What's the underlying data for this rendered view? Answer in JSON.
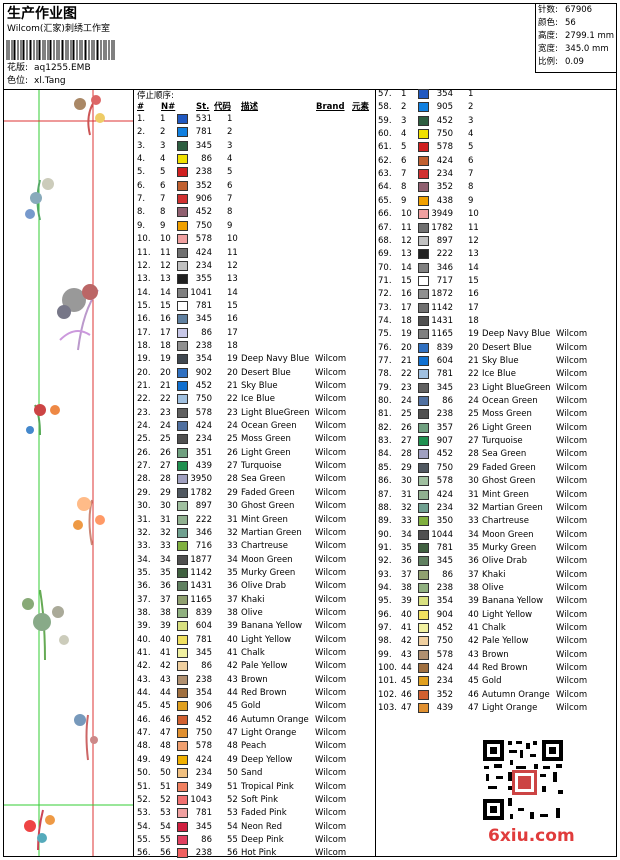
{
  "header": {
    "title": "生产作业图",
    "studio": "Wilcom(汇家)刺绣工作室",
    "design_label": "花版:",
    "design": "aq1255.EMB",
    "colorway_label": "色位:",
    "colorway": "xl.Tang"
  },
  "info": [
    {
      "label": "针数:",
      "value": "67906"
    },
    {
      "label": "颜色:",
      "value": "56"
    },
    {
      "label": "高度:",
      "value": "2799.1 mm"
    },
    {
      "label": "宽度:",
      "value": "345.0 mm"
    },
    {
      "label": "比例:",
      "value": "0.09"
    }
  ],
  "stop_table": {
    "title": "停止顺序:",
    "columns": [
      "#",
      "N#",
      "St.",
      "代码",
      "描述",
      "Brand",
      "元素"
    ],
    "left": [
      {
        "seq": "1.",
        "n": "1",
        "color": "#2058c0",
        "st": "531",
        "code": "1"
      },
      {
        "seq": "2.",
        "n": "2",
        "color": "#1080e0",
        "st": "781",
        "code": "2"
      },
      {
        "seq": "3.",
        "n": "3",
        "color": "#2e5e40",
        "st": "345",
        "code": "3"
      },
      {
        "seq": "4.",
        "n": "4",
        "color": "#f0e000",
        "st": "86",
        "code": "4"
      },
      {
        "seq": "5.",
        "n": "5",
        "color": "#d02020",
        "st": "238",
        "code": "5"
      },
      {
        "seq": "6.",
        "n": "6",
        "color": "#c06030",
        "st": "352",
        "code": "6"
      },
      {
        "seq": "7.",
        "n": "7",
        "color": "#d03030",
        "st": "906",
        "code": "7"
      },
      {
        "seq": "8.",
        "n": "8",
        "color": "#906070",
        "st": "452",
        "code": "8"
      },
      {
        "seq": "9.",
        "n": "9",
        "color": "#f0a000",
        "st": "750",
        "code": "9"
      },
      {
        "seq": "10.",
        "n": "10",
        "color": "#f0a0a0",
        "st": "578",
        "code": "10"
      },
      {
        "seq": "11.",
        "n": "11",
        "color": "#707070",
        "st": "424",
        "code": "11"
      },
      {
        "seq": "12.",
        "n": "12",
        "color": "#c0c0c0",
        "st": "234",
        "code": "12"
      },
      {
        "seq": "13.",
        "n": "13",
        "color": "#202020",
        "st": "355",
        "code": "13"
      },
      {
        "seq": "14.",
        "n": "14",
        "color": "#808080",
        "st": "1041",
        "code": "14"
      },
      {
        "seq": "15.",
        "n": "15",
        "color": "#ffffff",
        "st": "781",
        "code": "15"
      },
      {
        "seq": "16.",
        "n": "16",
        "color": "#6080a0",
        "st": "345",
        "code": "16"
      },
      {
        "seq": "17.",
        "n": "17",
        "color": "#c8c8e8",
        "st": "86",
        "code": "17"
      },
      {
        "seq": "18.",
        "n": "18",
        "color": "#909090",
        "st": "238",
        "code": "18"
      },
      {
        "seq": "19.",
        "n": "19",
        "color": "#404850",
        "st": "354",
        "code": "19",
        "desc": "Deep Navy Blue",
        "brand": "Wilcom"
      },
      {
        "seq": "20.",
        "n": "20",
        "color": "#3070c0",
        "st": "902",
        "code": "20",
        "desc": "Desert Blue",
        "brand": "Wilcom"
      },
      {
        "seq": "21.",
        "n": "21",
        "color": "#1070d0",
        "st": "452",
        "code": "21",
        "desc": "Sky Blue",
        "brand": "Wilcom"
      },
      {
        "seq": "22.",
        "n": "22",
        "color": "#a0c0e0",
        "st": "750",
        "code": "22",
        "desc": "Ice Blue",
        "brand": "Wilcom"
      },
      {
        "seq": "23.",
        "n": "23",
        "color": "#606060",
        "st": "578",
        "code": "23",
        "desc": "Light BlueGreen",
        "brand": "Wilcom"
      },
      {
        "seq": "24.",
        "n": "24",
        "color": "#5070a0",
        "st": "424",
        "code": "24",
        "desc": "Ocean Green",
        "brand": "Wilcom"
      },
      {
        "seq": "25.",
        "n": "25",
        "color": "#505050",
        "st": "234",
        "code": "25",
        "desc": "Moss Green",
        "brand": "Wilcom"
      },
      {
        "seq": "26.",
        "n": "26",
        "color": "#70a080",
        "st": "351",
        "code": "26",
        "desc": "Light Green",
        "brand": "Wilcom"
      },
      {
        "seq": "27.",
        "n": "27",
        "color": "#209050",
        "st": "439",
        "code": "27",
        "desc": "Turquoise",
        "brand": "Wilcom"
      },
      {
        "seq": "28.",
        "n": "28",
        "color": "#a0a0c0",
        "st": "3950",
        "code": "28",
        "desc": "Sea Green",
        "brand": "Wilcom"
      },
      {
        "seq": "29.",
        "n": "29",
        "color": "#505860",
        "st": "1782",
        "code": "29",
        "desc": "Faded Green",
        "brand": "Wilcom"
      },
      {
        "seq": "30.",
        "n": "30",
        "color": "#a0c0a0",
        "st": "897",
        "code": "30",
        "desc": "Ghost Green",
        "brand": "Wilcom"
      },
      {
        "seq": "31.",
        "n": "31",
        "color": "#90b090",
        "st": "222",
        "code": "31",
        "desc": "Mint Green",
        "brand": "Wilcom"
      },
      {
        "seq": "32.",
        "n": "32",
        "color": "#70a090",
        "st": "346",
        "code": "32",
        "desc": "Martian Green",
        "brand": "Wilcom"
      },
      {
        "seq": "33.",
        "n": "33",
        "color": "#80b040",
        "st": "716",
        "code": "33",
        "desc": "Chartreuse",
        "brand": "Wilcom"
      },
      {
        "seq": "34.",
        "n": "34",
        "color": "#505050",
        "st": "1877",
        "code": "34",
        "desc": "Moon Green",
        "brand": "Wilcom"
      },
      {
        "seq": "35.",
        "n": "35",
        "color": "#406040",
        "st": "1142",
        "code": "35",
        "desc": "Murky Green",
        "brand": "Wilcom"
      },
      {
        "seq": "36.",
        "n": "36",
        "color": "#608060",
        "st": "1431",
        "code": "36",
        "desc": "Olive Drab",
        "brand": "Wilcom"
      },
      {
        "seq": "37.",
        "n": "37",
        "color": "#90a070",
        "st": "1165",
        "code": "37",
        "desc": "Khaki",
        "brand": "Wilcom"
      },
      {
        "seq": "38.",
        "n": "38",
        "color": "#90b080",
        "st": "839",
        "code": "38",
        "desc": "Olive",
        "brand": "Wilcom"
      },
      {
        "seq": "39.",
        "n": "39",
        "color": "#d8e080",
        "st": "604",
        "code": "39",
        "desc": "Banana Yellow",
        "brand": "Wilcom"
      },
      {
        "seq": "40.",
        "n": "40",
        "color": "#f0e060",
        "st": "781",
        "code": "40",
        "desc": "Light Yellow",
        "brand": "Wilcom"
      },
      {
        "seq": "41.",
        "n": "41",
        "color": "#f0f0a0",
        "st": "345",
        "code": "41",
        "desc": "Chalk",
        "brand": "Wilcom"
      },
      {
        "seq": "42.",
        "n": "42",
        "color": "#f0d0a0",
        "st": "86",
        "code": "42",
        "desc": "Pale Yellow",
        "brand": "Wilcom"
      },
      {
        "seq": "43.",
        "n": "43",
        "color": "#b09070",
        "st": "238",
        "code": "43",
        "desc": "Brown",
        "brand": "Wilcom"
      },
      {
        "seq": "44.",
        "n": "44",
        "color": "#a07040",
        "st": "354",
        "code": "44",
        "desc": "Red Brown",
        "brand": "Wilcom"
      },
      {
        "seq": "45.",
        "n": "45",
        "color": "#e0a020",
        "st": "906",
        "code": "45",
        "desc": "Gold",
        "brand": "Wilcom"
      },
      {
        "seq": "46.",
        "n": "46",
        "color": "#d06030",
        "st": "452",
        "code": "46",
        "desc": "Autumn Orange",
        "brand": "Wilcom"
      },
      {
        "seq": "47.",
        "n": "47",
        "color": "#e09030",
        "st": "750",
        "code": "47",
        "desc": "Light Orange",
        "brand": "Wilcom"
      },
      {
        "seq": "48.",
        "n": "48",
        "color": "#f0a070",
        "st": "578",
        "code": "48",
        "desc": "Peach",
        "brand": "Wilcom"
      },
      {
        "seq": "49.",
        "n": "49",
        "color": "#f0b000",
        "st": "424",
        "code": "49",
        "desc": "Deep Yellow",
        "brand": "Wilcom"
      },
      {
        "seq": "50.",
        "n": "50",
        "color": "#f0c080",
        "st": "234",
        "code": "50",
        "desc": "Sand",
        "brand": "Wilcom"
      },
      {
        "seq": "51.",
        "n": "51",
        "color": "#f08060",
        "st": "349",
        "code": "51",
        "desc": "Tropical Pink",
        "brand": "Wilcom"
      },
      {
        "seq": "52.",
        "n": "52",
        "color": "#f07070",
        "st": "1043",
        "code": "52",
        "desc": "Soft Pink",
        "brand": "Wilcom"
      },
      {
        "seq": "53.",
        "n": "53",
        "color": "#f0a0a0",
        "st": "781",
        "code": "53",
        "desc": "Faded Pink",
        "brand": "Wilcom"
      },
      {
        "seq": "54.",
        "n": "54",
        "color": "#d02040",
        "st": "345",
        "code": "54",
        "desc": "Neon Red",
        "brand": "Wilcom"
      },
      {
        "seq": "55.",
        "n": "55",
        "color": "#e04060",
        "st": "86",
        "code": "55",
        "desc": "Deep Pink",
        "brand": "Wilcom"
      },
      {
        "seq": "56.",
        "n": "56",
        "color": "#f06060",
        "st": "238",
        "code": "56",
        "desc": "Hot Pink",
        "brand": "Wilcom"
      }
    ],
    "right": [
      {
        "seq": "57.",
        "n": "1",
        "color": "#2058c0",
        "st": "354",
        "code": "1"
      },
      {
        "seq": "58.",
        "n": "2",
        "color": "#1080e0",
        "st": "905",
        "code": "2"
      },
      {
        "seq": "59.",
        "n": "3",
        "color": "#2e5e40",
        "st": "452",
        "code": "3"
      },
      {
        "seq": "60.",
        "n": "4",
        "color": "#f0e000",
        "st": "750",
        "code": "4"
      },
      {
        "seq": "61.",
        "n": "5",
        "color": "#d02020",
        "st": "578",
        "code": "5"
      },
      {
        "seq": "62.",
        "n": "6",
        "color": "#c06030",
        "st": "424",
        "code": "6"
      },
      {
        "seq": "63.",
        "n": "7",
        "color": "#d03030",
        "st": "234",
        "code": "7"
      },
      {
        "seq": "64.",
        "n": "8",
        "color": "#906070",
        "st": "352",
        "code": "8"
      },
      {
        "seq": "65.",
        "n": "9",
        "color": "#f0a000",
        "st": "438",
        "code": "9"
      },
      {
        "seq": "66.",
        "n": "10",
        "color": "#f0a0a0",
        "st": "3949",
        "code": "10"
      },
      {
        "seq": "67.",
        "n": "11",
        "color": "#707070",
        "st": "1782",
        "code": "11"
      },
      {
        "seq": "68.",
        "n": "12",
        "color": "#c0c0c0",
        "st": "897",
        "code": "12"
      },
      {
        "seq": "69.",
        "n": "13",
        "color": "#202020",
        "st": "222",
        "code": "13"
      },
      {
        "seq": "70.",
        "n": "14",
        "color": "#808080",
        "st": "346",
        "code": "14"
      },
      {
        "seq": "71.",
        "n": "15",
        "color": "#ffffff",
        "st": "717",
        "code": "15"
      },
      {
        "seq": "72.",
        "n": "16",
        "color": "#909090",
        "st": "1872",
        "code": "16"
      },
      {
        "seq": "73.",
        "n": "17",
        "color": "#707070",
        "st": "1142",
        "code": "17"
      },
      {
        "seq": "74.",
        "n": "18",
        "color": "#505050",
        "st": "1431",
        "code": "18"
      },
      {
        "seq": "75.",
        "n": "19",
        "color": "#808080",
        "st": "1165",
        "code": "19",
        "desc": "Deep Navy Blue",
        "brand": "Wilcom"
      },
      {
        "seq": "76.",
        "n": "20",
        "color": "#3070c0",
        "st": "839",
        "code": "20",
        "desc": "Desert Blue",
        "brand": "Wilcom"
      },
      {
        "seq": "77.",
        "n": "21",
        "color": "#1070d0",
        "st": "604",
        "code": "21",
        "desc": "Sky Blue",
        "brand": "Wilcom"
      },
      {
        "seq": "78.",
        "n": "22",
        "color": "#a0c0e0",
        "st": "781",
        "code": "22",
        "desc": "Ice Blue",
        "brand": "Wilcom"
      },
      {
        "seq": "79.",
        "n": "23",
        "color": "#606060",
        "st": "345",
        "code": "23",
        "desc": "Light BlueGreen",
        "brand": "Wilcom"
      },
      {
        "seq": "80.",
        "n": "24",
        "color": "#5070a0",
        "st": "86",
        "code": "24",
        "desc": "Ocean Green",
        "brand": "Wilcom"
      },
      {
        "seq": "81.",
        "n": "25",
        "color": "#505050",
        "st": "238",
        "code": "25",
        "desc": "Moss Green",
        "brand": "Wilcom"
      },
      {
        "seq": "82.",
        "n": "26",
        "color": "#70a080",
        "st": "357",
        "code": "26",
        "desc": "Light Green",
        "brand": "Wilcom"
      },
      {
        "seq": "83.",
        "n": "27",
        "color": "#209050",
        "st": "907",
        "code": "27",
        "desc": "Turquoise",
        "brand": "Wilcom"
      },
      {
        "seq": "84.",
        "n": "28",
        "color": "#a0a0c0",
        "st": "452",
        "code": "28",
        "desc": "Sea Green",
        "brand": "Wilcom"
      },
      {
        "seq": "85.",
        "n": "29",
        "color": "#505860",
        "st": "750",
        "code": "29",
        "desc": "Faded Green",
        "brand": "Wilcom"
      },
      {
        "seq": "86.",
        "n": "30",
        "color": "#a0c0a0",
        "st": "578",
        "code": "30",
        "desc": "Ghost Green",
        "brand": "Wilcom"
      },
      {
        "seq": "87.",
        "n": "31",
        "color": "#90b090",
        "st": "424",
        "code": "31",
        "desc": "Mint Green",
        "brand": "Wilcom"
      },
      {
        "seq": "88.",
        "n": "32",
        "color": "#70a090",
        "st": "234",
        "code": "32",
        "desc": "Martian Green",
        "brand": "Wilcom"
      },
      {
        "seq": "89.",
        "n": "33",
        "color": "#80b040",
        "st": "350",
        "code": "33",
        "desc": "Chartreuse",
        "brand": "Wilcom"
      },
      {
        "seq": "90.",
        "n": "34",
        "color": "#505050",
        "st": "1044",
        "code": "34",
        "desc": "Moon Green",
        "brand": "Wilcom"
      },
      {
        "seq": "91.",
        "n": "35",
        "color": "#406040",
        "st": "781",
        "code": "35",
        "desc": "Murky Green",
        "brand": "Wilcom"
      },
      {
        "seq": "92.",
        "n": "36",
        "color": "#608060",
        "st": "345",
        "code": "36",
        "desc": "Olive Drab",
        "brand": "Wilcom"
      },
      {
        "seq": "93.",
        "n": "37",
        "color": "#90a070",
        "st": "86",
        "code": "37",
        "desc": "Khaki",
        "brand": "Wilcom"
      },
      {
        "seq": "94.",
        "n": "38",
        "color": "#90b080",
        "st": "238",
        "code": "38",
        "desc": "Olive",
        "brand": "Wilcom"
      },
      {
        "seq": "95.",
        "n": "39",
        "color": "#d8e080",
        "st": "354",
        "code": "39",
        "desc": "Banana Yellow",
        "brand": "Wilcom"
      },
      {
        "seq": "96.",
        "n": "40",
        "color": "#f0e060",
        "st": "904",
        "code": "40",
        "desc": "Light Yellow",
        "brand": "Wilcom"
      },
      {
        "seq": "97.",
        "n": "41",
        "color": "#f0f0a0",
        "st": "452",
        "code": "41",
        "desc": "Chalk",
        "brand": "Wilcom"
      },
      {
        "seq": "98.",
        "n": "42",
        "color": "#f0d0a0",
        "st": "750",
        "code": "42",
        "desc": "Pale Yellow",
        "brand": "Wilcom"
      },
      {
        "seq": "99.",
        "n": "43",
        "color": "#b09070",
        "st": "578",
        "code": "43",
        "desc": "Brown",
        "brand": "Wilcom"
      },
      {
        "seq": "100.",
        "n": "44",
        "color": "#a07040",
        "st": "424",
        "code": "44",
        "desc": "Red Brown",
        "brand": "Wilcom"
      },
      {
        "seq": "101.",
        "n": "45",
        "color": "#e0a020",
        "st": "234",
        "code": "45",
        "desc": "Gold",
        "brand": "Wilcom"
      },
      {
        "seq": "102.",
        "n": "46",
        "color": "#d06030",
        "st": "352",
        "code": "46",
        "desc": "Autumn Orange",
        "brand": "Wilcom"
      },
      {
        "seq": "103.",
        "n": "47",
        "color": "#e09030",
        "st": "439",
        "code": "47",
        "desc": "Light Orange",
        "brand": "Wilcom"
      }
    ]
  },
  "watermark": "6xiu.com"
}
